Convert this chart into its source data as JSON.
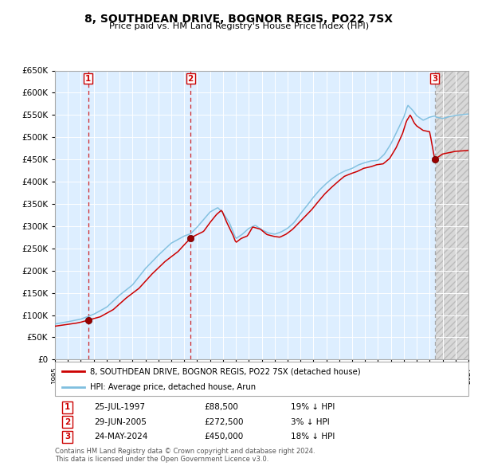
{
  "title": "8, SOUTHDEAN DRIVE, BOGNOR REGIS, PO22 7SX",
  "subtitle": "Price paid vs. HM Land Registry's House Price Index (HPI)",
  "background_color": "#ffffff",
  "plot_bg_color": "#ddeeff",
  "hpi_color": "#7fbfdf",
  "price_color": "#cc0000",
  "sale_marker_color": "#990000",
  "sales": [
    {
      "label": 1,
      "date_num": 1997.57,
      "price": 88500,
      "pct": "19% ↓ HPI",
      "date_str": "25-JUL-1997"
    },
    {
      "label": 2,
      "date_num": 2005.49,
      "price": 272500,
      "pct": "3% ↓ HPI",
      "date_str": "29-JUN-2005"
    },
    {
      "label": 3,
      "date_num": 2024.39,
      "price": 450000,
      "pct": "18% ↓ HPI",
      "date_str": "24-MAY-2024"
    }
  ],
  "xmin": 1995.0,
  "xmax": 2027.0,
  "ymin": 0,
  "ymax": 650000,
  "yticks": [
    0,
    50000,
    100000,
    150000,
    200000,
    250000,
    300000,
    350000,
    400000,
    450000,
    500000,
    550000,
    600000,
    650000
  ],
  "legend_line1": "8, SOUTHDEAN DRIVE, BOGNOR REGIS, PO22 7SX (detached house)",
  "legend_line2": "HPI: Average price, detached house, Arun",
  "footer1": "Contains HM Land Registry data © Crown copyright and database right 2024.",
  "footer2": "This data is licensed under the Open Government Licence v3.0.",
  "future_start": 2024.5
}
